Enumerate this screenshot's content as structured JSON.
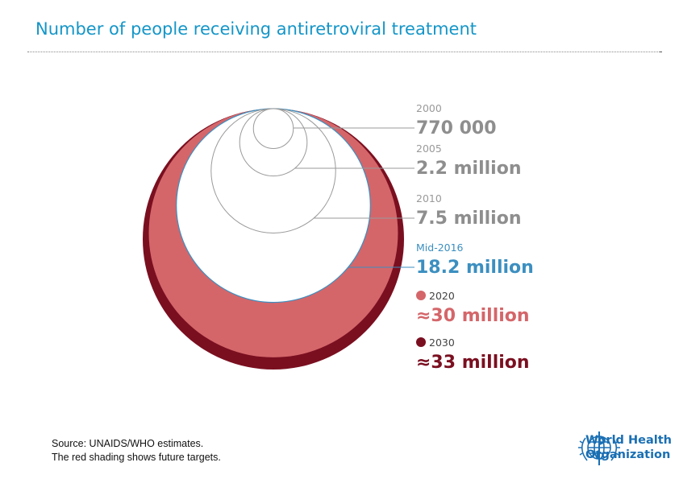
{
  "title": "Number of people receiving antiretroviral treatment",
  "source_lines": [
    "Source: UNAIDS/WHO estimates.",
    "The red shading shows future targets."
  ],
  "logo": {
    "lines": [
      "World Health",
      "Organization"
    ],
    "icon": "who-emblem-icon",
    "color": "#1a6fb3"
  },
  "chart_data": {
    "type": "nested-circles",
    "unit": "people",
    "points": [
      {
        "year": "2000",
        "value": 770000,
        "label": "770 000",
        "color": "#9a9a9a",
        "style": "outline"
      },
      {
        "year": "2005",
        "value": 2200000,
        "label": "2.2 million",
        "color": "#9a9a9a",
        "style": "outline"
      },
      {
        "year": "2010",
        "value": 7500000,
        "label": "7.5 million",
        "color": "#9a9a9a",
        "style": "outline"
      },
      {
        "year": "Mid-2016",
        "value": 18200000,
        "label": "18.2 million",
        "color": "#3c8fc0",
        "style": "outline"
      },
      {
        "year": "2020",
        "value": 30000000,
        "label": "≈30 million",
        "color": "#d4666a",
        "style": "target"
      },
      {
        "year": "2030",
        "value": 33000000,
        "label": "≈33 million",
        "color": "#7a0f20",
        "style": "target"
      }
    ],
    "colors": {
      "past_outline": "#9a9a9a",
      "current": "#3c8fc0",
      "target_2020": "#d4666a",
      "target_2030": "#7a0f20"
    }
  }
}
